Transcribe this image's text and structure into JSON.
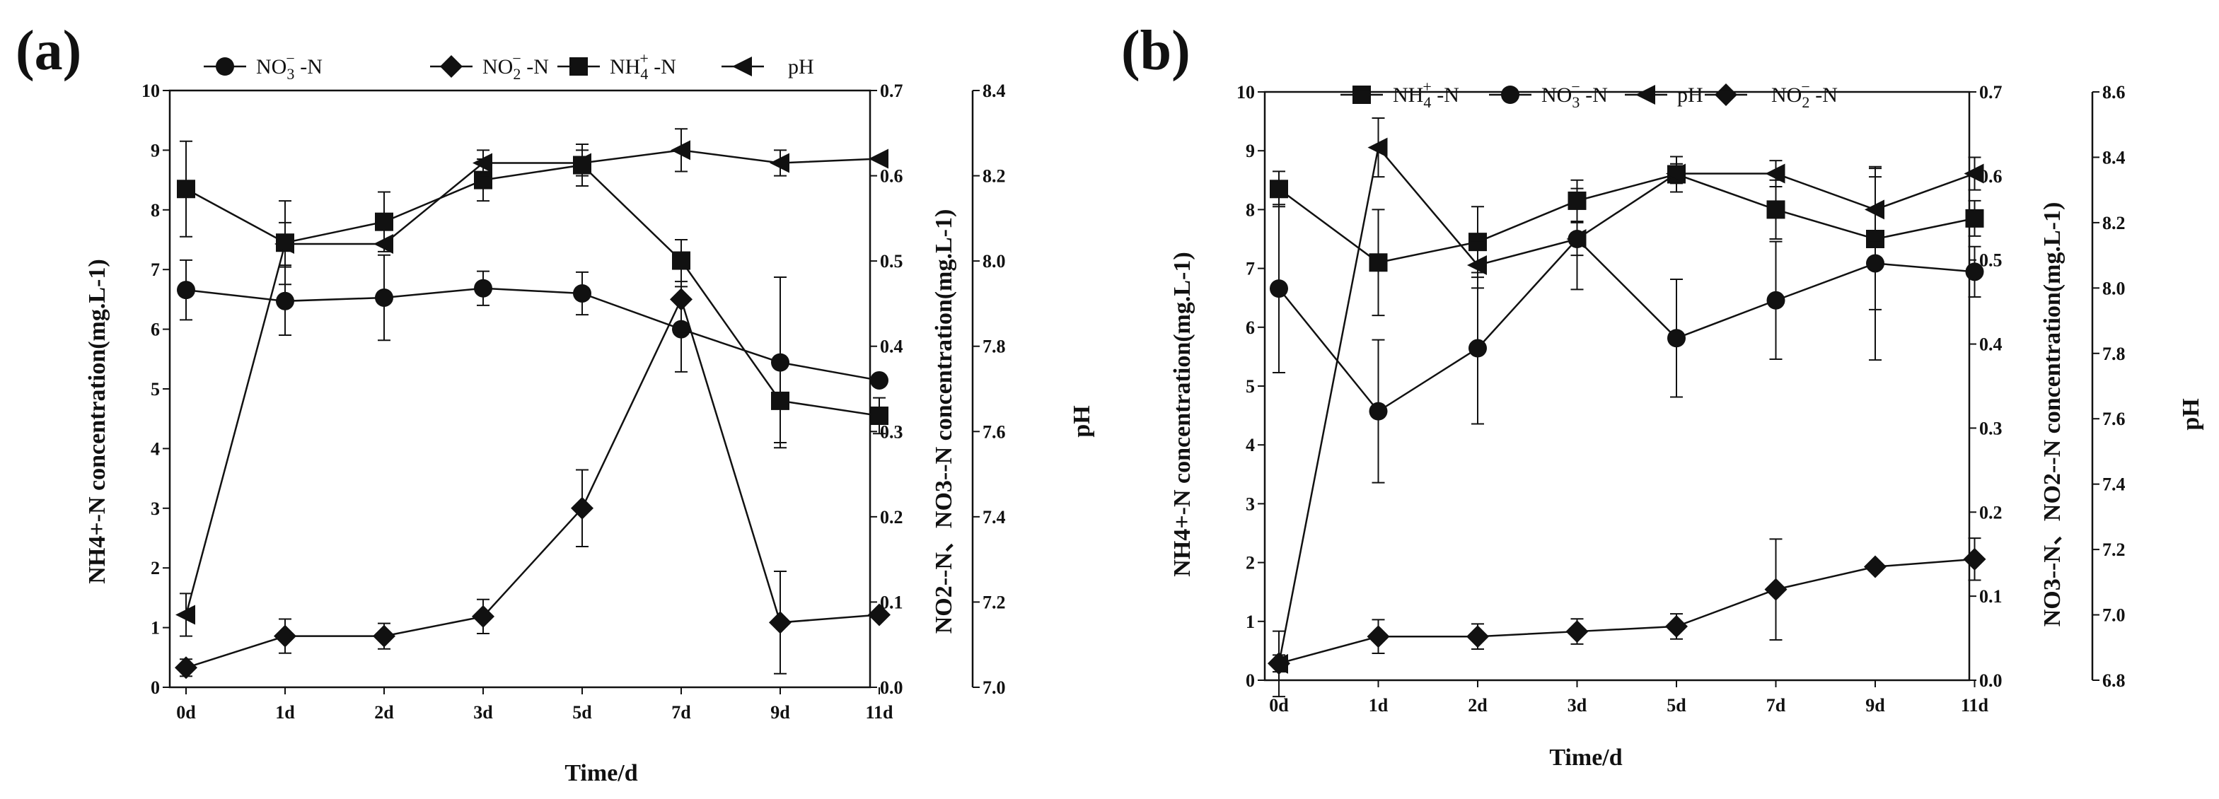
{
  "figure": {
    "panels": [
      {
        "label": "(a)",
        "xlabel": "Time/d",
        "ylabel_left": "NH4+-N concentration(mg.L-1)",
        "ylabel_right1": "NO2--N、NO3--N concentration(mg.L-1)",
        "ylabel_right2": "pH"
      },
      {
        "label": "(b)",
        "xlabel": "Time/d",
        "ylabel_left": "NH4+-N concentration(mg.L-1)",
        "ylabel_right1": "NO3--N、NO2--N concentration(mg.L-1)",
        "ylabel_right2": "pH"
      }
    ]
  },
  "chart_data": [
    {
      "type": "line",
      "title": "(a)",
      "xlabel": "Time/d",
      "categories": [
        "0d",
        "1d",
        "2d",
        "3d",
        "5d",
        "7d",
        "9d",
        "11d"
      ],
      "axes": {
        "left": {
          "label": "NH4+-N concentration(mg.L-1)",
          "range": [
            0,
            10
          ],
          "ticks": [
            0,
            1,
            2,
            3,
            4,
            5,
            6,
            7,
            8,
            9,
            10
          ]
        },
        "right1": {
          "label": "NO2--N、NO3--N concentration(mg.L-1)",
          "range": [
            0,
            0.7
          ],
          "ticks": [
            "0.0",
            "0.1",
            "0.2",
            "0.3",
            "0.4",
            "0.5",
            "0.6",
            "0.7"
          ]
        },
        "right2": {
          "label": "pH",
          "range": [
            7.0,
            8.4
          ],
          "ticks": [
            "7.0",
            "7.2",
            "7.4",
            "7.6",
            "7.8",
            "8.0",
            "8.2",
            "8.4"
          ]
        }
      },
      "legend": [
        {
          "name": "NO3-N",
          "text": "NO",
          "sub": "3",
          "sup": "−",
          "tail": "-N",
          "marker": "circle"
        },
        {
          "name": "NO2-N",
          "text": "NO",
          "sub": "2",
          "sup": "−",
          "tail": "-N",
          "marker": "diamond"
        },
        {
          "name": "NH4-N",
          "text": "NH",
          "sub": "4",
          "sup": "+",
          "tail": "-N",
          "marker": "square"
        },
        {
          "name": "pH",
          "text": "pH",
          "sub": "",
          "sup": "",
          "tail": "",
          "marker": "triangle-left"
        }
      ],
      "series": [
        {
          "name": "NO3-N",
          "axis": "right1",
          "marker": "circle",
          "values": [
            0.466,
            0.453,
            0.457,
            0.468,
            0.462,
            0.42,
            0.381,
            0.36
          ],
          "errors": [
            0.035,
            0.04,
            0.05,
            0.02,
            0.025,
            0.05,
            0.1,
            0.0
          ]
        },
        {
          "name": "NO2-N",
          "axis": "right1",
          "marker": "diamond",
          "values": [
            0.023,
            0.06,
            0.06,
            0.083,
            0.21,
            0.455,
            0.076,
            0.085
          ],
          "errors": [
            0.01,
            0.02,
            0.015,
            0.02,
            0.045,
            0.04,
            0.06,
            0.0
          ]
        },
        {
          "name": "NH4-N",
          "axis": "left",
          "marker": "square",
          "values": [
            8.35,
            7.45,
            7.8,
            8.5,
            8.75,
            7.15,
            4.8,
            4.55
          ],
          "errors": [
            0.8,
            0.7,
            0.5,
            0.35,
            0.35,
            0.35,
            0.7,
            0.3
          ]
        },
        {
          "name": "pH",
          "axis": "right2",
          "marker": "triangle-left",
          "values": [
            7.17,
            8.04,
            8.04,
            8.23,
            8.23,
            8.26,
            8.23,
            8.24
          ],
          "errors": [
            0.05,
            0.05,
            0.0,
            0.03,
            0.03,
            0.05,
            0.03,
            0.0
          ]
        }
      ]
    },
    {
      "type": "line",
      "title": "(b)",
      "xlabel": "Time/d",
      "categories": [
        "0d",
        "1d",
        "2d",
        "3d",
        "5d",
        "7d",
        "9d",
        "11d"
      ],
      "axes": {
        "left": {
          "label": "NH4+-N concentration(mg.L-1)",
          "range": [
            0,
            10
          ],
          "ticks": [
            0,
            1,
            2,
            3,
            4,
            5,
            6,
            7,
            8,
            9,
            10
          ]
        },
        "right1": {
          "label": "NO3--N、NO2--N concentration(mg.L-1)",
          "range": [
            0,
            0.7
          ],
          "ticks": [
            "0.0",
            "0.1",
            "0.2",
            "0.3",
            "0.4",
            "0.5",
            "0.6",
            "0.7"
          ]
        },
        "right2": {
          "label": "pH",
          "range": [
            6.8,
            8.6
          ],
          "ticks": [
            "6.8",
            "7.0",
            "7.2",
            "7.4",
            "7.6",
            "7.8",
            "8.0",
            "8.2",
            "8.4",
            "8.6"
          ]
        }
      },
      "legend": [
        {
          "name": "NH4-N",
          "text": "NH",
          "sub": "4",
          "sup": "+",
          "tail": "-N",
          "marker": "square"
        },
        {
          "name": "NO3-N",
          "text": "NO",
          "sub": "3",
          "sup": "−",
          "tail": "-N",
          "marker": "circle"
        },
        {
          "name": "pH",
          "text": "pH",
          "sub": "",
          "sup": "",
          "tail": "",
          "marker": "triangle-left"
        },
        {
          "name": "NO2-N",
          "text": "NO",
          "sub": "2",
          "sup": "−",
          "tail": "-N",
          "marker": "diamond"
        }
      ],
      "series": [
        {
          "name": "NH4-N",
          "axis": "left",
          "marker": "square",
          "values": [
            8.35,
            7.1,
            7.45,
            8.15,
            8.6,
            8.0,
            7.5,
            7.85
          ],
          "errors": [
            0.3,
            0.9,
            0.6,
            0.35,
            0.3,
            0.5,
            1.2,
            0.3
          ]
        },
        {
          "name": "NO3-N",
          "axis": "right1",
          "marker": "circle",
          "values": [
            0.466,
            0.32,
            0.395,
            0.525,
            0.407,
            0.452,
            0.496,
            0.486
          ],
          "errors": [
            0.1,
            0.085,
            0.09,
            0.06,
            0.07,
            0.07,
            0.115,
            0.03
          ]
        },
        {
          "name": "pH",
          "axis": "right2",
          "marker": "triangle-left",
          "values": [
            6.85,
            8.43,
            8.07,
            8.15,
            8.35,
            8.35,
            8.24,
            8.35
          ],
          "errors": [
            0.1,
            0.09,
            0.07,
            0.05,
            0.03,
            0.04,
            0.1,
            0.05
          ]
        },
        {
          "name": "NO2-N",
          "axis": "right1",
          "marker": "diamond",
          "values": [
            0.02,
            0.052,
            0.052,
            0.058,
            0.064,
            0.108,
            0.135,
            0.144
          ],
          "errors": [
            0.01,
            0.02,
            0.015,
            0.015,
            0.015,
            0.06,
            0.0,
            0.025
          ]
        }
      ]
    }
  ]
}
